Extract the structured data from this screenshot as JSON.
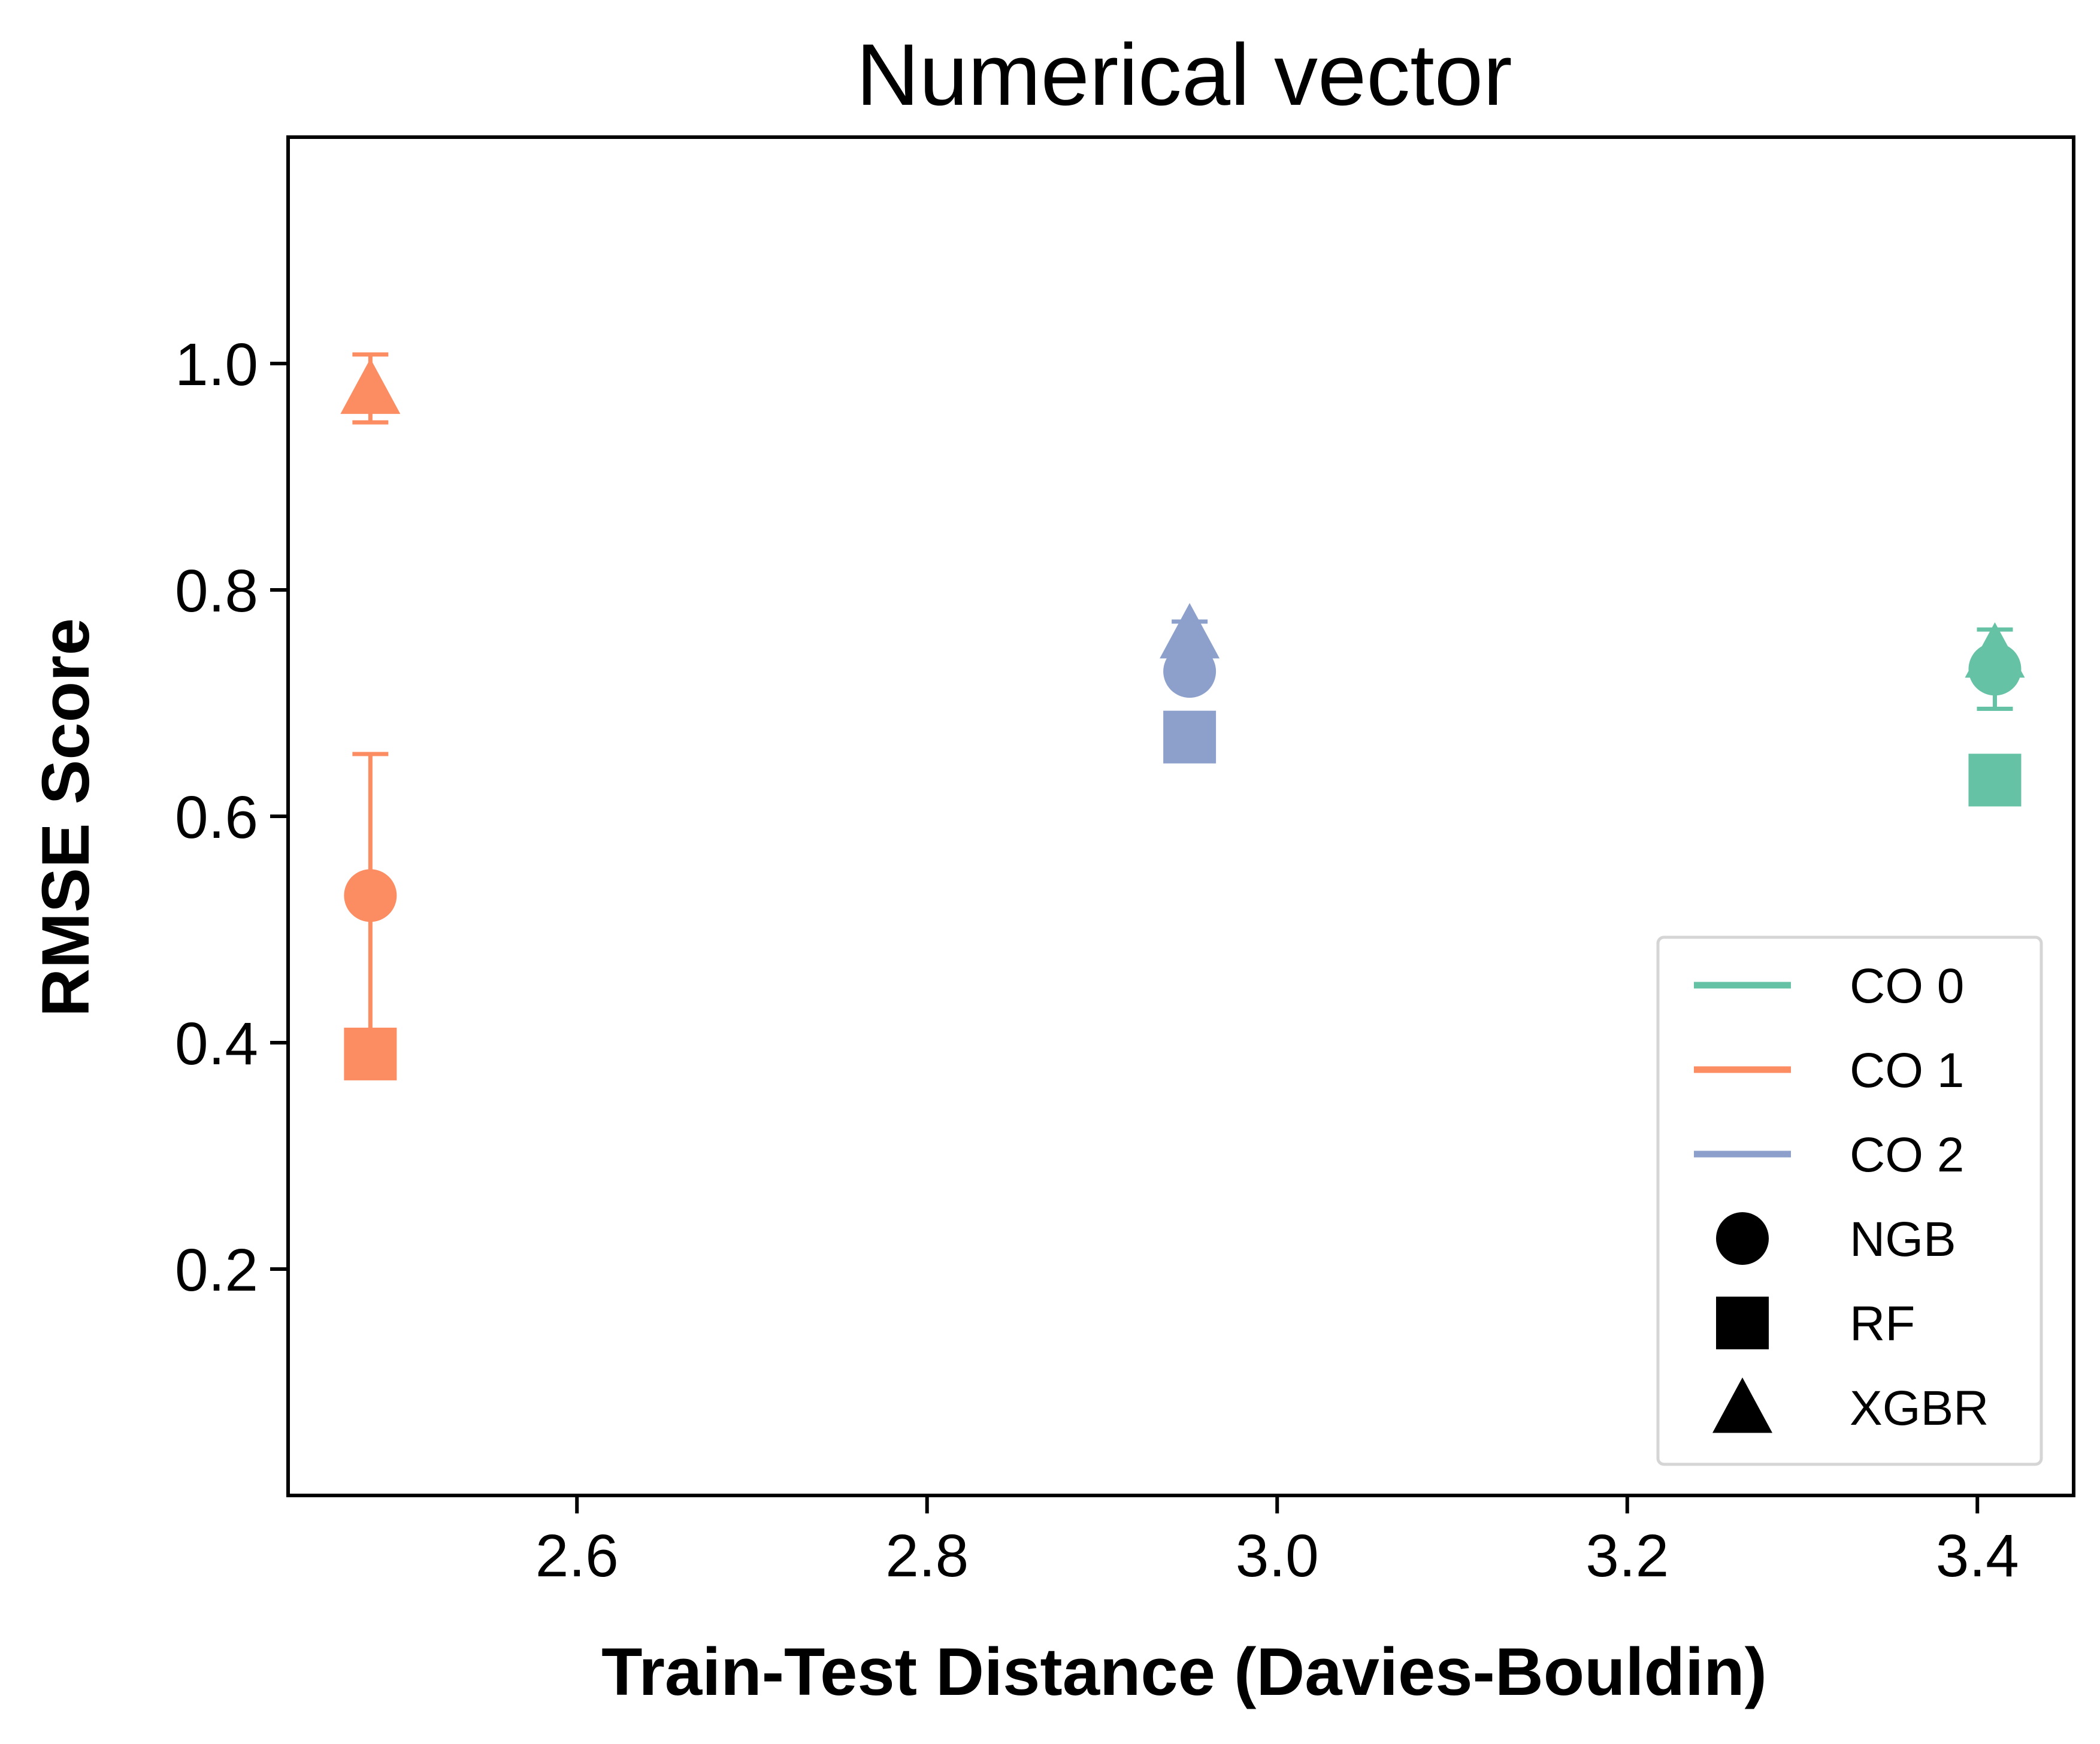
{
  "chart_data": {
    "type": "scatter",
    "title": "Numerical vector",
    "xlabel": "Train-Test Distance (Davies-Bouldin)",
    "ylabel": "RMSE Score",
    "xlim": [
      2.435,
      3.455
    ],
    "ylim": [
      0.0,
      1.2
    ],
    "xticks": [
      2.6,
      2.8,
      3.0,
      3.2,
      3.4
    ],
    "xtick_labels": [
      "2.6",
      "2.8",
      "3.0",
      "3.2",
      "3.4"
    ],
    "yticks": [
      0.2,
      0.4,
      0.6,
      0.8,
      1.0
    ],
    "ytick_labels": [
      "0.2",
      "0.4",
      "0.6",
      "0.8",
      "1.0"
    ],
    "grid": false,
    "legend_position": "bottom-right",
    "colors": {
      "CO 0": "#66c2a5",
      "CO 1": "#fc8d62",
      "CO 2": "#8da0cb"
    },
    "legend": {
      "colors": [
        {
          "name": "CO 0",
          "color": "#66c2a5"
        },
        {
          "name": "CO 1",
          "color": "#fc8d62"
        },
        {
          "name": "CO 2",
          "color": "#8da0cb"
        }
      ],
      "markers": [
        {
          "name": "NGB",
          "marker": "circle"
        },
        {
          "name": "RF",
          "marker": "square"
        },
        {
          "name": "XGBR",
          "marker": "triangle"
        }
      ]
    },
    "series": [
      {
        "group": "CO 1",
        "model": "NGB",
        "marker": "circle",
        "x": 2.482,
        "y": 0.53,
        "err_low": 0.405,
        "err_high": 0.655
      },
      {
        "group": "CO 1",
        "model": "RF",
        "marker": "square",
        "x": 2.482,
        "y": 0.39
      },
      {
        "group": "CO 1",
        "model": "XGBR",
        "marker": "triangle",
        "x": 2.482,
        "y": 0.978,
        "err_low": 0.948,
        "err_high": 1.008
      },
      {
        "group": "CO 2",
        "model": "NGB",
        "marker": "circle",
        "x": 2.95,
        "y": 0.728
      },
      {
        "group": "CO 2",
        "model": "RF",
        "marker": "square",
        "x": 2.95,
        "y": 0.67
      },
      {
        "group": "CO 2",
        "model": "XGBR",
        "marker": "triangle",
        "x": 2.95,
        "y": 0.762,
        "err_low": 0.752,
        "err_high": 0.772
      },
      {
        "group": "CO 0",
        "model": "NGB",
        "marker": "circle",
        "x": 3.41,
        "y": 0.73,
        "err_low": 0.695,
        "err_high": 0.765
      },
      {
        "group": "CO 0",
        "model": "RF",
        "marker": "square",
        "x": 3.41,
        "y": 0.632
      },
      {
        "group": "CO 0",
        "model": "XGBR",
        "marker": "triangle",
        "x": 3.41,
        "y": 0.745
      }
    ]
  }
}
